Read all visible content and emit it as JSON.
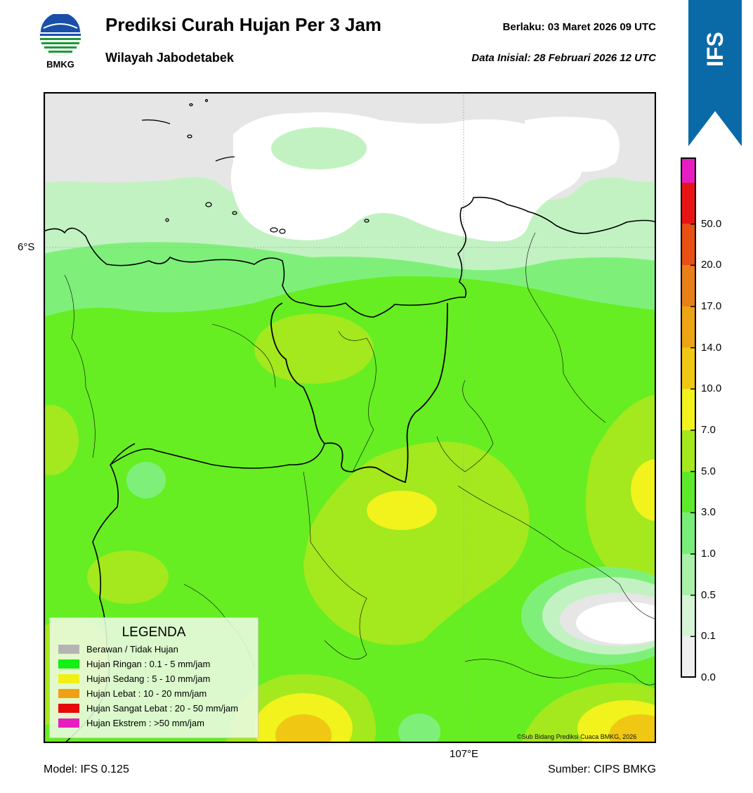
{
  "header": {
    "title": "Prediksi Curah Hujan Per 3 Jam",
    "region": "Wilayah Jabodetabek",
    "valid_label": "Berlaku:  03 Maret 2026 09 UTC",
    "init_label": "Data Inisial:  28 Februari 2026 12 UTC"
  },
  "logo": {
    "text": "BMKG"
  },
  "ribbon": {
    "text": "IFS",
    "color": "#0a6aa8"
  },
  "map": {
    "lat_label": "6°S",
    "lon_label": "107°E",
    "copyright": "©Sub Bidang Prediksi Cuaca BMKG, 2026"
  },
  "colorbar": {
    "ticks": [
      "0.0",
      "0.1",
      "0.5",
      "1.0",
      "3.0",
      "5.0",
      "7.0",
      "10.0",
      "14.0",
      "17.0",
      "20.0",
      "50.0"
    ],
    "colors": [
      "#f0f0f0",
      "#d6f5d6",
      "#a9f0a9",
      "#78ee78",
      "#5cea2a",
      "#a4e81e",
      "#f2f21c",
      "#f0c814",
      "#eda414",
      "#e8801a",
      "#e85014",
      "#e81414",
      "#e61ec2"
    ]
  },
  "legend": {
    "title": "LEGENDA",
    "items": [
      {
        "label": "Berawan / Tidak Hujan",
        "color": "#b4b4b4"
      },
      {
        "label": "Hujan Ringan : 0.1 - 5 mm/jam",
        "color": "#14f014"
      },
      {
        "label": "Hujan Sedang : 5 - 10 mm/jam",
        "color": "#f0f014"
      },
      {
        "label": "Hujan Lebat : 10 - 20 mm/jam",
        "color": "#f0a014"
      },
      {
        "label": "Hujan Sangat Lebat : 20 - 50 mm/jam",
        "color": "#e60a0a"
      },
      {
        "label": "Hujan Ekstrem : >50 mm/jam",
        "color": "#e61ec2"
      }
    ]
  },
  "footer": {
    "model": "Model: IFS 0.125",
    "source": "Sumber: CIPS BMKG"
  }
}
